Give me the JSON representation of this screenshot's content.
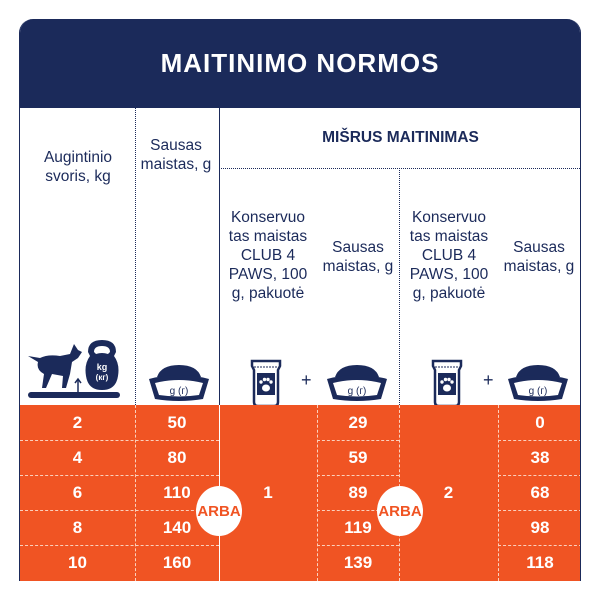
{
  "title": "MAITINIMO NORMOS",
  "headers": {
    "weight": "Augintinio svoris, kg",
    "dry": "Sausas maistas, g",
    "mixed": "MIŠRUS MAITINIMAS",
    "canned": "Konservuo tas maistas CLUB 4 PAWS, 100 g, pakuotė",
    "dry_mixed": "Sausas maistas, g"
  },
  "icons": {
    "weight": "dog-kettlebell-icon",
    "bowl": "food-bowl-icon",
    "pouch": "paw-pouch-icon",
    "plus": "+",
    "bowl_label": "g (г)",
    "kettle_label": "kg (кг)"
  },
  "rows": [
    {
      "weight": "2",
      "dry": "50",
      "mix1_dry": "29",
      "mix2_dry": "0"
    },
    {
      "weight": "4",
      "dry": "80",
      "mix1_dry": "59",
      "mix2_dry": "38"
    },
    {
      "weight": "6",
      "dry": "110",
      "mix1_dry": "89",
      "mix2_dry": "68"
    },
    {
      "weight": "8",
      "dry": "140",
      "mix1_dry": "119",
      "mix2_dry": "98"
    },
    {
      "weight": "10",
      "dry": "160",
      "mix1_dry": "139",
      "mix2_dry": "118"
    }
  ],
  "mix1_pouches": "1",
  "mix2_pouches": "2",
  "or_label": "ARBA",
  "colors": {
    "navy": "#1b2a5a",
    "orange": "#f05423"
  }
}
